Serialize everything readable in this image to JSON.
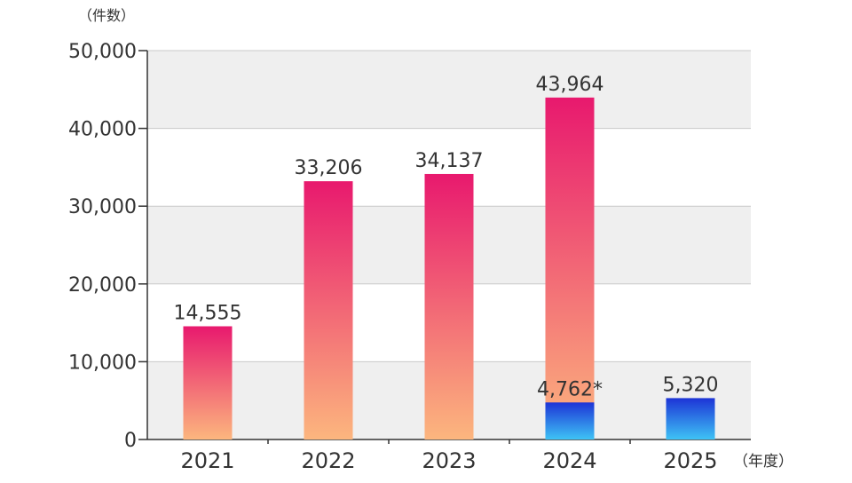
{
  "chart_data": {
    "type": "bar",
    "y_unit_label": "（件数）",
    "x_unit_label": "（年度）",
    "categories": [
      "2021",
      "2022",
      "2023",
      "2024",
      "2025"
    ],
    "series": [
      {
        "values": [
          14555,
          33206,
          34137,
          43964,
          null
        ],
        "labels": [
          "14,555",
          "33,206",
          "34,137",
          "43,964",
          null
        ],
        "color_top": "#e8196e",
        "color_bottom": "#fcb67e"
      },
      {
        "values": [
          null,
          null,
          null,
          4762,
          5320
        ],
        "labels": [
          null,
          null,
          null,
          "4,762*",
          "5,320"
        ],
        "color_top": "#1d34d6",
        "color_bottom": "#3ec3f5"
      }
    ],
    "ylim": [
      0,
      50000
    ],
    "yticks": [
      "0",
      "10,000",
      "20,000",
      "30,000",
      "40,000",
      "50,000"
    ],
    "ytick_values": [
      0,
      10000,
      20000,
      30000,
      40000,
      50000
    ],
    "grid": true,
    "band_colors": [
      "#efefef",
      "#ffffff"
    ]
  }
}
